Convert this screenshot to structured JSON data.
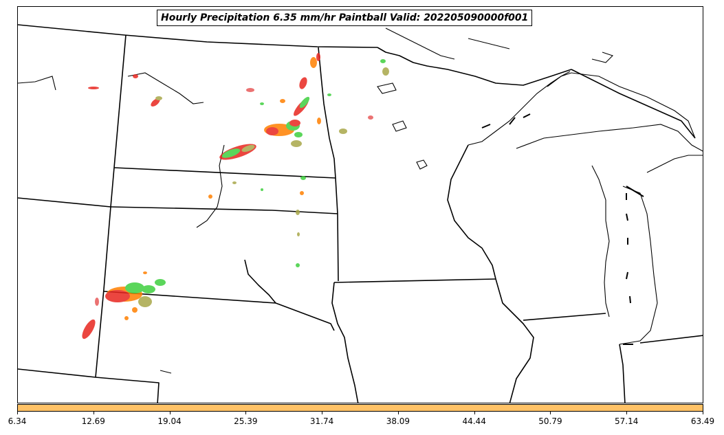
{
  "title": "Hourly Precipitation 6.35 mm/hr Paintball Valid: 202205090000f001",
  "colorbar": {
    "color": "#ffc266",
    "tick_labels": [
      "6.34",
      "12.69",
      "19.04",
      "25.39",
      "31.74",
      "38.09",
      "44.44",
      "50.79",
      "57.14",
      "63.49"
    ]
  },
  "colors": {
    "boundary": "#000000",
    "paint_red": "#e8261f",
    "paint_orange": "#ff7f00",
    "paint_green": "#3fcf3f",
    "paint_olive": "#a9a84a",
    "paint_pink": "#e85a5a"
  }
}
